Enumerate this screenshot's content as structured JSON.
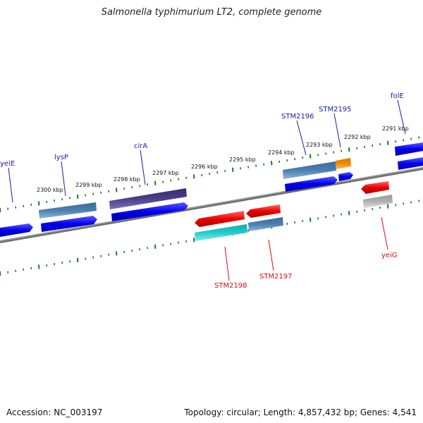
{
  "title": "Salmonella typhimurium LT2, complete genome",
  "footer": {
    "accession": "Accession: NC_003197",
    "summary": "Topology: circular; Length: 4,857,432 bp; Genes: 4,541"
  },
  "scale_labels": [
    "2300 kbp",
    "2299 kbp",
    "2298 kbp",
    "2297 kbp",
    "2296 kbp",
    "2295 kbp",
    "2294 kbp",
    "2293 kbp",
    "2292 kbp",
    "2291 kbp"
  ],
  "gene_labels": [
    {
      "name": "yeiE",
      "color": "#1a1aa8"
    },
    {
      "name": "lysP",
      "color": "#1a1aa8"
    },
    {
      "name": "cirA",
      "color": "#1a1aa8"
    },
    {
      "name": "STM2196",
      "color": "#1a1aa8"
    },
    {
      "name": "STM2195",
      "color": "#1a1aa8"
    },
    {
      "name": "folE",
      "color": "#1a1aa8"
    },
    {
      "name": "STM2198",
      "color": "#cc1111"
    },
    {
      "name": "STM2197",
      "color": "#cc1111"
    },
    {
      "name": "yeiG",
      "color": "#cc1111"
    }
  ],
  "colors": {
    "backbone": "#808080",
    "tick": "#1e7a1e",
    "forward_cds": "#0000ee",
    "reverse_cds": "#ee0000",
    "forward_feature": "#4a7fb0",
    "cirA_feature": "#4a3f8a",
    "reverse_feature_cyan": "#22cccc",
    "reverse_feature_steel": "#4a7fb0",
    "orange_feature": "#f08a00",
    "grey_feature": "#b0b0b0"
  }
}
